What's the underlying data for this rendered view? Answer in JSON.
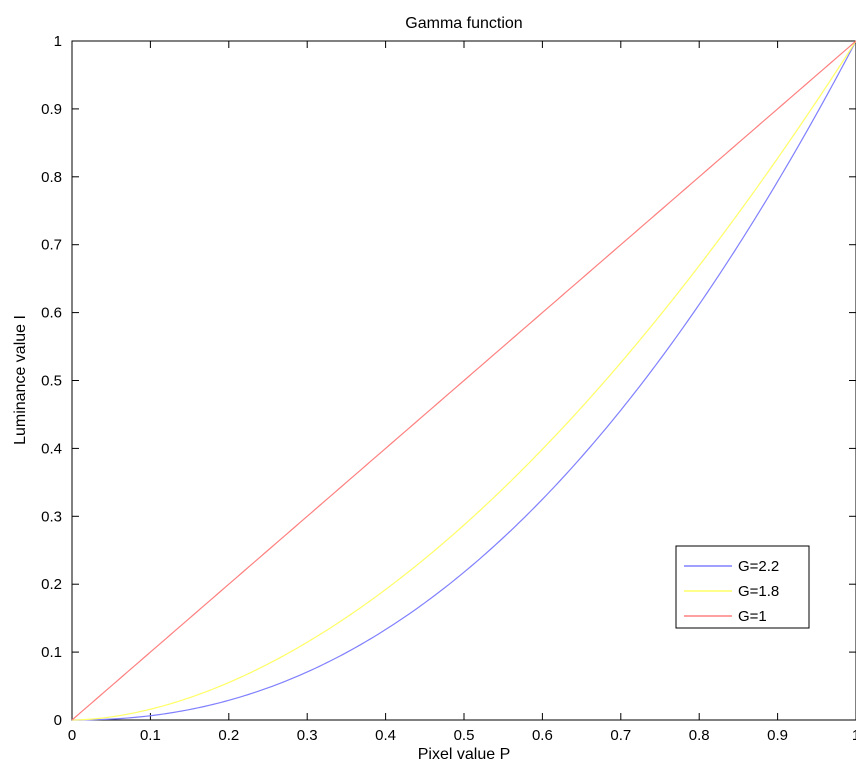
{
  "chart_data": {
    "type": "line",
    "title": "Gamma function",
    "xlabel": "Pixel value P",
    "ylabel": "Luminance value I",
    "xlim": [
      0,
      1
    ],
    "ylim": [
      0,
      1
    ],
    "xticks": [
      "0",
      "0.1",
      "0.2",
      "0.3",
      "0.4",
      "0.5",
      "0.6",
      "0.7",
      "0.8",
      "0.9",
      "1"
    ],
    "yticks": [
      "0",
      "0.1",
      "0.2",
      "0.3",
      "0.4",
      "0.5",
      "0.6",
      "0.7",
      "0.8",
      "0.9",
      "1"
    ],
    "grid": false,
    "legend_position": "bottom-right",
    "x": [
      0,
      0.05,
      0.1,
      0.15,
      0.2,
      0.25,
      0.3,
      0.35,
      0.4,
      0.45,
      0.5,
      0.55,
      0.6,
      0.65,
      0.7,
      0.75,
      0.8,
      0.85,
      0.9,
      0.95,
      1
    ],
    "series": [
      {
        "name": "G=2.2",
        "color": "#8080ff",
        "gamma": 2.2,
        "values": [
          0,
          0.0014,
          0.0063,
          0.0154,
          0.029,
          0.0474,
          0.0707,
          0.0993,
          0.1332,
          0.1726,
          0.2176,
          0.2683,
          0.325,
          0.3877,
          0.4563,
          0.531,
          0.6121,
          0.6993,
          0.7932,
          0.8934,
          1
        ]
      },
      {
        "name": "G=1.8",
        "color": "#ffff66",
        "gamma": 1.8,
        "values": [
          0,
          0.0046,
          0.0158,
          0.0327,
          0.0552,
          0.0825,
          0.1145,
          0.1509,
          0.1924,
          0.2375,
          0.2872,
          0.3406,
          0.3987,
          0.4604,
          0.5264,
          0.596,
          0.6693,
          0.7465,
          0.8271,
          0.9117,
          1
        ]
      },
      {
        "name": "G=1",
        "color": "#ff8080",
        "gamma": 1,
        "values": [
          0,
          0.05,
          0.1,
          0.15,
          0.2,
          0.25,
          0.3,
          0.35,
          0.4,
          0.45,
          0.5,
          0.55,
          0.6,
          0.65,
          0.7,
          0.75,
          0.8,
          0.85,
          0.9,
          0.95,
          1
        ]
      }
    ]
  }
}
